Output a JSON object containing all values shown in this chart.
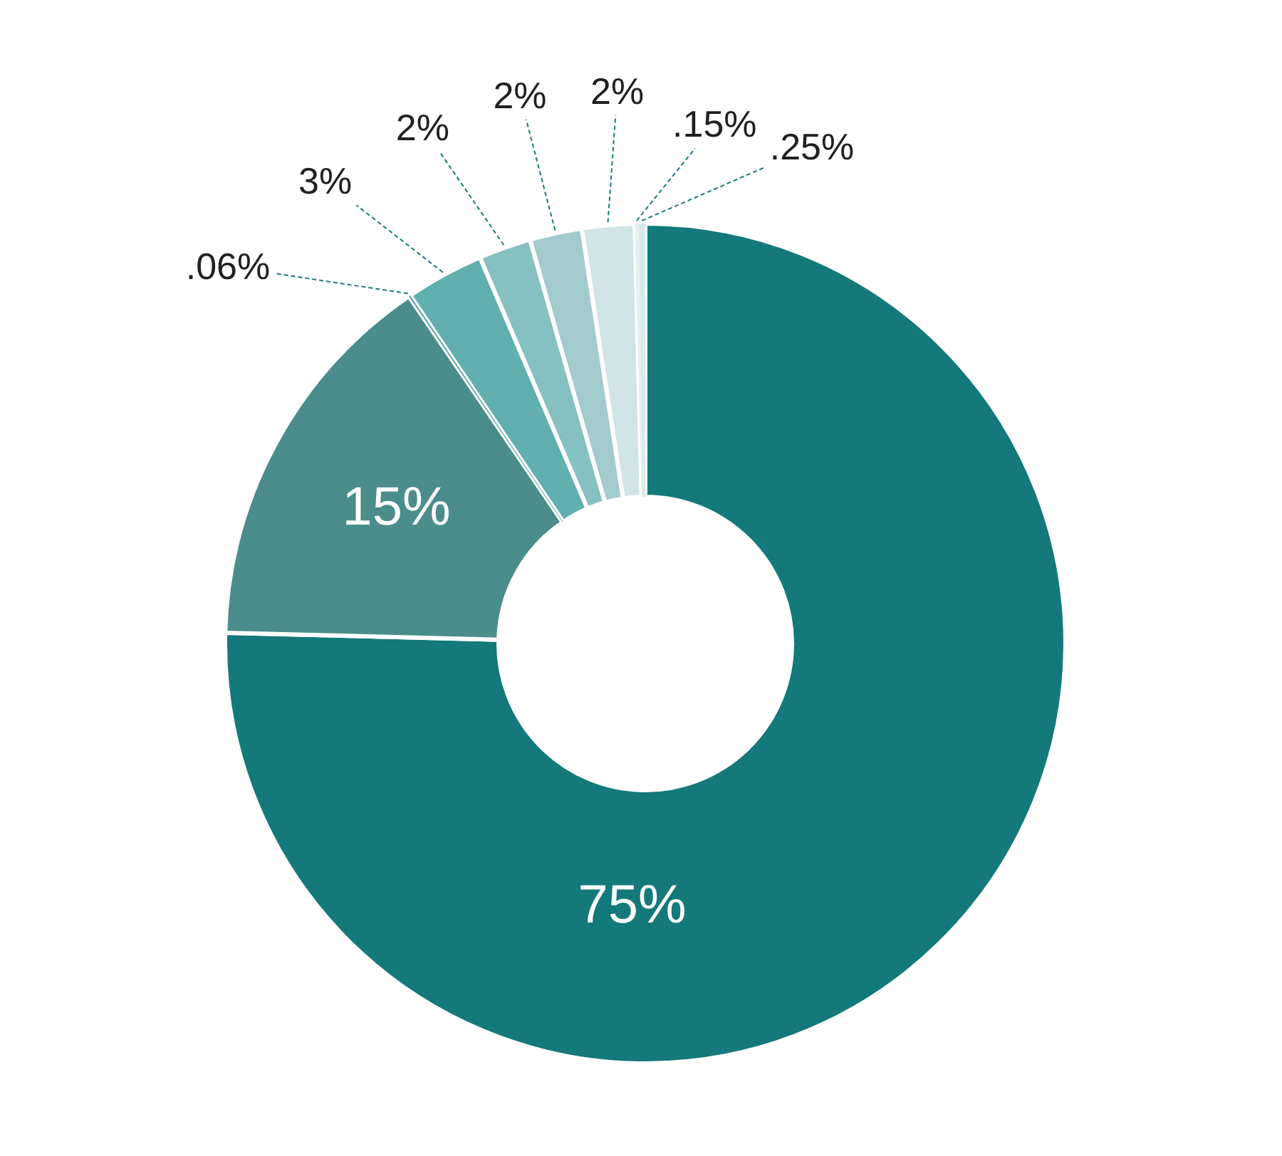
{
  "chart_data": {
    "type": "donut",
    "categories": [
      null,
      null,
      null,
      null,
      null,
      null,
      null,
      null,
      null
    ],
    "values": [
      75,
      15,
      0.06,
      3,
      2,
      2,
      2,
      0.15,
      0.25
    ],
    "colors": [
      "#14797a",
      "#4a8d8a",
      "#5aa8a8",
      "#62afb0",
      "#86c0c1",
      "#a3cbcd",
      "#d1e4e6",
      "#e6f1f1",
      "#d9eaeb"
    ],
    "value_labels": [
      "75%",
      "15%",
      ".06%",
      "3%",
      "2%",
      "2%",
      "2%",
      ".15%",
      ".25%"
    ]
  }
}
